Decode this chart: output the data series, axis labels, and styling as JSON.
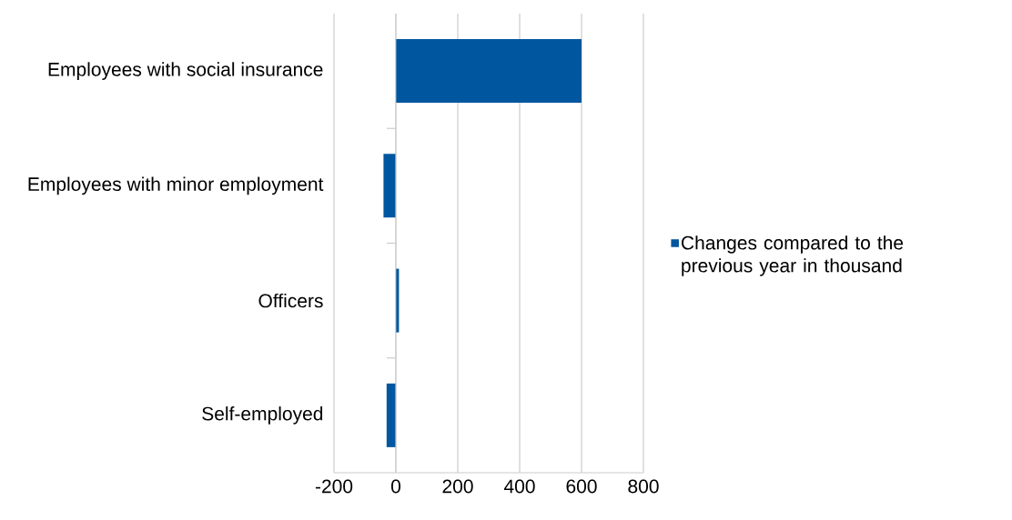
{
  "chart_data": {
    "type": "bar",
    "orientation": "horizontal",
    "categories": [
      "Employees with social insurance",
      "Employees with minor employment",
      "Officers",
      "Self-employed"
    ],
    "series": [
      {
        "name": "Changes compared to the previous year in thousand",
        "color": "#00569f",
        "values": [
          600,
          -40,
          10,
          -30
        ]
      }
    ],
    "xlim": [
      -200,
      800
    ],
    "xticks": [
      -200,
      0,
      200,
      400,
      600,
      800
    ],
    "grid": "x",
    "legend": "right"
  }
}
